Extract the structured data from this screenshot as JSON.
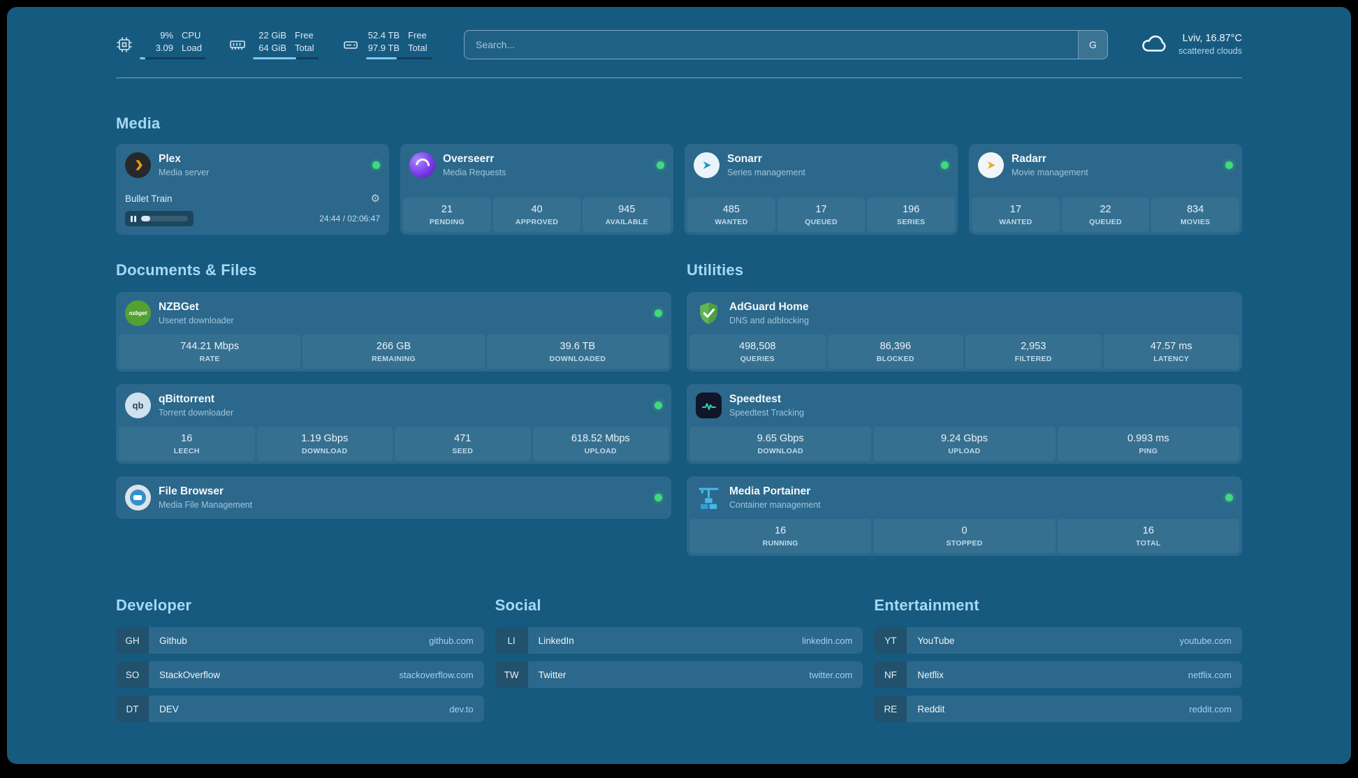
{
  "theme": {
    "page_background": "#175a80",
    "card_background": "rgba(255,255,255,0.085)",
    "heading_color": "#a6d9f4",
    "accent_color": "#85c6ec",
    "status_online_color": "#41d97e"
  },
  "header": {
    "cpu": {
      "rows": [
        {
          "value": "9%",
          "label": "CPU"
        },
        {
          "value": "3.09",
          "label": "Load"
        }
      ],
      "bar_percent": 9
    },
    "memory": {
      "rows": [
        {
          "value": "22 GiB",
          "label": "Free"
        },
        {
          "value": "64 GiB",
          "label": "Total"
        }
      ],
      "bar_percent": 66
    },
    "disk": {
      "rows": [
        {
          "value": "52.4 TB",
          "label": "Free"
        },
        {
          "value": "97.9 TB",
          "label": "Total"
        }
      ],
      "bar_percent": 47
    },
    "search": {
      "placeholder": "Search...",
      "provider_label": "G"
    },
    "weather": {
      "location": "Lviv, 16.87°C",
      "condition": "scattered clouds"
    }
  },
  "sections": {
    "media": {
      "title": "Media",
      "services": [
        {
          "name": "Plex",
          "subtitle": "Media server",
          "status": "online",
          "now_playing": {
            "title": "Bullet Train",
            "time": "24:44 / 02:06:47",
            "progress_percent": 19.5
          }
        },
        {
          "name": "Overseerr",
          "subtitle": "Media Requests",
          "status": "online",
          "stats": [
            {
              "value": "21",
              "label": "PENDING"
            },
            {
              "value": "40",
              "label": "APPROVED"
            },
            {
              "value": "945",
              "label": "AVAILABLE"
            }
          ]
        },
        {
          "name": "Sonarr",
          "subtitle": "Series management",
          "status": "online",
          "stats": [
            {
              "value": "485",
              "label": "WANTED"
            },
            {
              "value": "17",
              "label": "QUEUED"
            },
            {
              "value": "196",
              "label": "SERIES"
            }
          ]
        },
        {
          "name": "Radarr",
          "subtitle": "Movie management",
          "status": "online",
          "stats": [
            {
              "value": "17",
              "label": "WANTED"
            },
            {
              "value": "22",
              "label": "QUEUED"
            },
            {
              "value": "834",
              "label": "MOVIES"
            }
          ]
        }
      ]
    },
    "documents": {
      "title": "Documents & Files",
      "services": [
        {
          "name": "NZBGet",
          "subtitle": "Usenet downloader",
          "status": "online",
          "stats": [
            {
              "value": "744.21 Mbps",
              "label": "RATE"
            },
            {
              "value": "266 GB",
              "label": "REMAINING"
            },
            {
              "value": "39.6 TB",
              "label": "DOWNLOADED"
            }
          ]
        },
        {
          "name": "qBittorrent",
          "subtitle": "Torrent downloader",
          "status": "online",
          "stats": [
            {
              "value": "16",
              "label": "LEECH"
            },
            {
              "value": "1.19 Gbps",
              "label": "DOWNLOAD"
            },
            {
              "value": "471",
              "label": "SEED"
            },
            {
              "value": "618.52 Mbps",
              "label": "UPLOAD"
            }
          ]
        },
        {
          "name": "File Browser",
          "subtitle": "Media File Management",
          "status": "online"
        }
      ]
    },
    "utilities": {
      "title": "Utilities",
      "services": [
        {
          "name": "AdGuard Home",
          "subtitle": "DNS and adblocking",
          "stats": [
            {
              "value": "498,508",
              "label": "QUERIES"
            },
            {
              "value": "86,396",
              "label": "BLOCKED"
            },
            {
              "value": "2,953",
              "label": "FILTERED"
            },
            {
              "value": "47.57 ms",
              "label": "LATENCY"
            }
          ]
        },
        {
          "name": "Speedtest",
          "subtitle": "Speedtest Tracking",
          "stats": [
            {
              "value": "9.65 Gbps",
              "label": "DOWNLOAD"
            },
            {
              "value": "9.24 Gbps",
              "label": "UPLOAD"
            },
            {
              "value": "0.993 ms",
              "label": "PING"
            }
          ]
        },
        {
          "name": "Media Portainer",
          "subtitle": "Container management",
          "status": "online",
          "stats": [
            {
              "value": "16",
              "label": "RUNNING"
            },
            {
              "value": "0",
              "label": "STOPPED"
            },
            {
              "value": "16",
              "label": "TOTAL"
            }
          ]
        }
      ]
    }
  },
  "bookmarks": [
    {
      "title": "Developer",
      "items": [
        {
          "abbr": "GH",
          "name": "Github",
          "url": "github.com"
        },
        {
          "abbr": "SO",
          "name": "StackOverflow",
          "url": "stackoverflow.com"
        },
        {
          "abbr": "DT",
          "name": "DEV",
          "url": "dev.to"
        }
      ]
    },
    {
      "title": "Social",
      "items": [
        {
          "abbr": "LI",
          "name": "LinkedIn",
          "url": "linkedin.com"
        },
        {
          "abbr": "TW",
          "name": "Twitter",
          "url": "twitter.com"
        }
      ]
    },
    {
      "title": "Entertainment",
      "items": [
        {
          "abbr": "YT",
          "name": "YouTube",
          "url": "youtube.com"
        },
        {
          "abbr": "NF",
          "name": "Netflix",
          "url": "netflix.com"
        },
        {
          "abbr": "RE",
          "name": "Reddit",
          "url": "reddit.com"
        }
      ]
    }
  ]
}
